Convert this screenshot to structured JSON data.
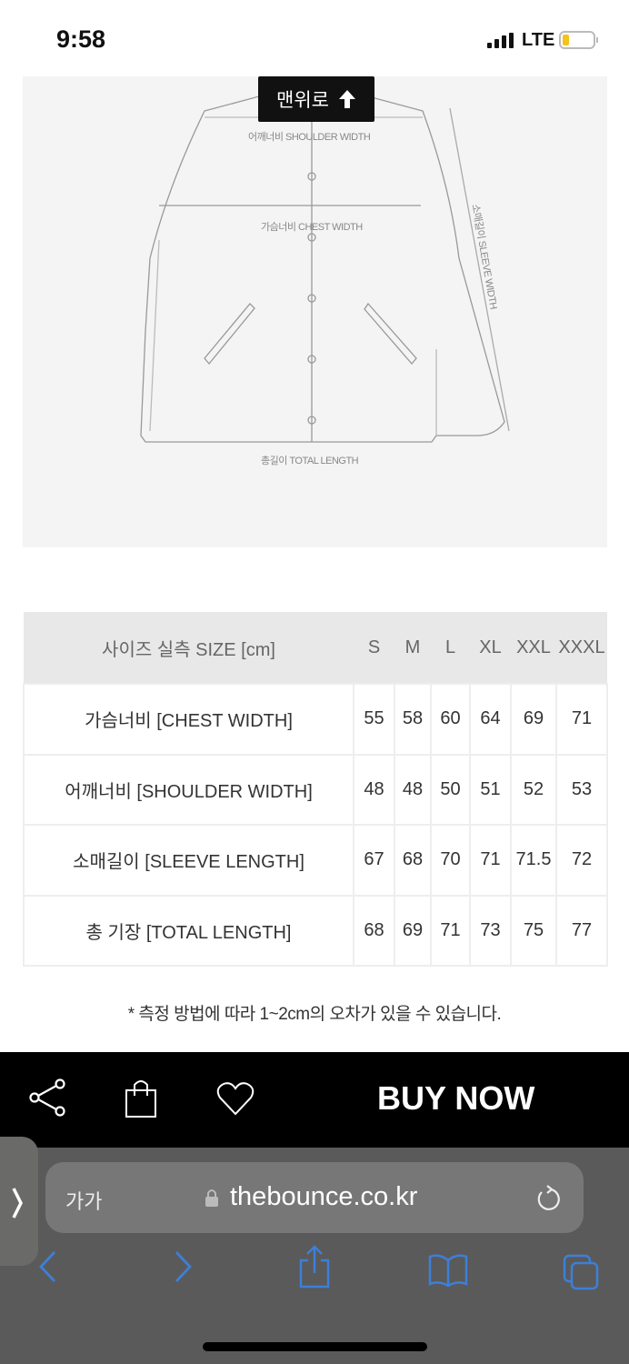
{
  "status_bar": {
    "time": "9:58",
    "network": "LTE",
    "battery_color": "#f2c318"
  },
  "diagram": {
    "labels": {
      "shoulder": "어깨너비 SHOULDER WIDTH",
      "chest": "가슴너비 CHEST WIDTH",
      "sleeve": "소매길이 SLEEVE WIDTH",
      "total": "총길이 TOTAL LENGTH"
    }
  },
  "scroll_top_button": {
    "label": "맨위로",
    "icon": "arrow-up-icon"
  },
  "size_table": {
    "header": "사이즈 실측 SIZE [cm]",
    "sizes": [
      "S",
      "M",
      "L",
      "XL",
      "XXL",
      "XXXL"
    ],
    "rows": [
      {
        "label": "가슴너비 [CHEST WIDTH]",
        "values": [
          "55",
          "58",
          "60",
          "64",
          "69",
          "71"
        ]
      },
      {
        "label": "어깨너비 [SHOULDER WIDTH]",
        "values": [
          "48",
          "48",
          "50",
          "51",
          "52",
          "53"
        ]
      },
      {
        "label": "소매길이 [SLEEVE LENGTH]",
        "values": [
          "67",
          "68",
          "70",
          "71",
          "71.5",
          "72"
        ]
      },
      {
        "label": "총 기장 [TOTAL LENGTH]",
        "values": [
          "68",
          "69",
          "71",
          "73",
          "75",
          "77"
        ]
      }
    ],
    "note": "* 측정 방법에 따라 1~2cm의 오차가 있을 수 있습니다."
  },
  "buy_bar": {
    "icons": [
      "share-icon",
      "shopping-bag-icon",
      "heart-icon"
    ],
    "buy_label": "BUY NOW"
  },
  "browser": {
    "text_size_label": "가가",
    "url": "thebounce.co.kr",
    "accent": "#3d7fd9"
  }
}
